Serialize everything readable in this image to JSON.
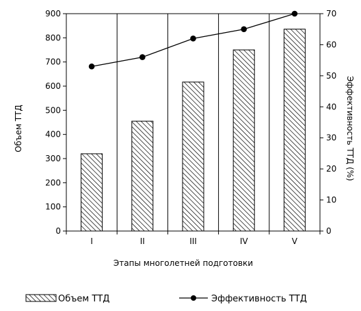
{
  "chart_data": {
    "type": "bar",
    "categories": [
      "I",
      "II",
      "III",
      "IV",
      "V"
    ],
    "series": [
      {
        "name": "Объем ТТД",
        "type": "bar",
        "axis": "left",
        "values": [
          320,
          455,
          617,
          750,
          836
        ]
      },
      {
        "name": "Эффективность ТТД",
        "type": "line",
        "axis": "right",
        "values": [
          53,
          56,
          62,
          65,
          70
        ]
      }
    ],
    "xlabel": "Этапы многолетней подготовки",
    "ylabel": "Объем ТТД",
    "y2label": "Эффективность ТТД (%)",
    "ylim": [
      0,
      900
    ],
    "y2lim": [
      0,
      70
    ],
    "yticks": [
      0,
      100,
      200,
      300,
      400,
      500,
      600,
      700,
      800,
      900
    ],
    "y2ticks": [
      0,
      10,
      20,
      30,
      40,
      50,
      60,
      70
    ],
    "legend_position": "bottom",
    "grid": "vertical",
    "colors": {
      "bar_fill": "#ffffff",
      "hatch": "#000000",
      "line": "#000000",
      "marker": "#000000"
    }
  }
}
